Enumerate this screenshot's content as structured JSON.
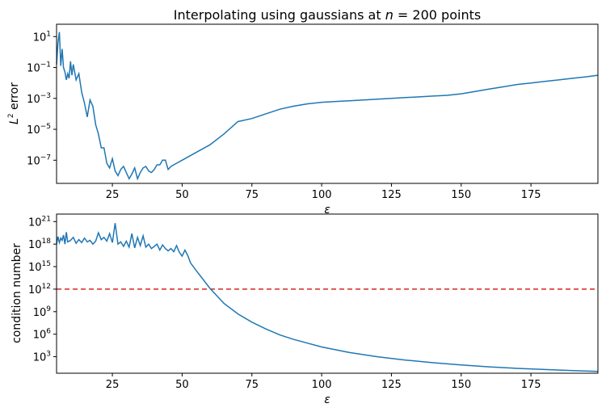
{
  "chart_data": [
    {
      "type": "line",
      "title_text": "Interpolating using gaussians at ",
      "title_var": "n",
      "title_eq": " = 200 points",
      "xlabel": "ε",
      "ylabel_base": "L",
      "ylabel_sup": "2",
      "ylabel_rest": " error",
      "y_scale": "log",
      "xlim": [
        5,
        199
      ],
      "ylim_exp": [
        -8.5,
        1.8
      ],
      "x_ticks": [
        25,
        50,
        75,
        100,
        125,
        150,
        175
      ],
      "y_tick_exps": [
        1,
        -1,
        -3,
        -5,
        -7
      ],
      "y_tick_labels": [
        {
          "base": "10",
          "exp": "1"
        },
        {
          "base": "10",
          "exp": "−1"
        },
        {
          "base": "10",
          "exp": "−3"
        },
        {
          "base": "10",
          "exp": "−5"
        },
        {
          "base": "10",
          "exp": "−7"
        }
      ],
      "series": [
        {
          "color": "#1f77b4",
          "x": [
            5,
            5.5,
            6,
            6.5,
            7,
            7.5,
            8,
            8.5,
            9,
            9.5,
            10,
            10.5,
            11,
            12,
            13,
            14,
            15,
            16,
            17,
            18,
            19,
            20,
            21,
            22,
            23,
            24,
            25,
            26,
            27,
            28,
            29,
            30,
            31,
            32,
            33,
            34,
            35,
            36,
            37,
            38,
            39,
            40,
            41,
            42,
            43,
            44,
            45,
            46,
            48,
            50,
            55,
            60,
            65,
            70,
            75,
            80,
            85,
            90,
            95,
            100,
            105,
            110,
            115,
            120,
            125,
            130,
            135,
            140,
            145,
            150,
            155,
            160,
            165,
            170,
            175,
            180,
            185,
            190,
            195,
            199
          ],
          "y_exp": [
            -0.8,
            0.6,
            1.3,
            -0.9,
            0.2,
            -1.0,
            -1.3,
            -1.8,
            -1.4,
            -1.7,
            -0.6,
            -1.5,
            -0.8,
            -1.8,
            -1.4,
            -2.6,
            -3.3,
            -4.2,
            -3.1,
            -3.5,
            -4.7,
            -5.3,
            -6.2,
            -6.2,
            -7.2,
            -7.5,
            -6.9,
            -7.7,
            -8.0,
            -7.6,
            -7.4,
            -7.8,
            -8.2,
            -7.9,
            -7.5,
            -8.2,
            -7.8,
            -7.5,
            -7.4,
            -7.7,
            -7.8,
            -7.6,
            -7.3,
            -7.3,
            -7.0,
            -7.0,
            -7.6,
            -7.4,
            -7.2,
            -7.0,
            -6.5,
            -6.0,
            -5.3,
            -4.5,
            -4.3,
            -4.0,
            -3.7,
            -3.5,
            -3.35,
            -3.25,
            -3.2,
            -3.15,
            -3.1,
            -3.05,
            -3.0,
            -2.95,
            -2.9,
            -2.85,
            -2.8,
            -2.7,
            -2.55,
            -2.4,
            -2.25,
            -2.1,
            -2.0,
            -1.9,
            -1.8,
            -1.7,
            -1.6,
            -1.5
          ]
        }
      ]
    },
    {
      "type": "line",
      "xlabel": "ε",
      "ylabel": "condition number",
      "y_scale": "log",
      "xlim": [
        5,
        199
      ],
      "ylim_exp": [
        0.8,
        22
      ],
      "x_ticks": [
        25,
        50,
        75,
        100,
        125,
        150,
        175
      ],
      "y_tick_exps": [
        21,
        18,
        15,
        12,
        9,
        6,
        3
      ],
      "y_tick_labels": [
        {
          "base": "10",
          "exp": "21"
        },
        {
          "base": "10",
          "exp": "18"
        },
        {
          "base": "10",
          "exp": "15"
        },
        {
          "base": "10",
          "exp": "12"
        },
        {
          "base": "10",
          "exp": "9"
        },
        {
          "base": "10",
          "exp": "6"
        },
        {
          "base": "10",
          "exp": "3"
        }
      ],
      "threshold": {
        "y_exp": 12,
        "color": "#d62728",
        "style": "dashed"
      },
      "series": [
        {
          "color": "#1f77b4",
          "x": [
            5,
            5.5,
            6,
            6.5,
            7,
            7.5,
            8,
            8.5,
            9,
            10,
            11,
            12,
            13,
            14,
            15,
            16,
            17,
            18,
            19,
            20,
            21,
            22,
            23,
            24,
            25,
            26,
            27,
            28,
            29,
            30,
            31,
            32,
            33,
            34,
            35,
            36,
            37,
            38,
            39,
            40,
            41,
            42,
            43,
            44,
            45,
            46,
            47,
            48,
            49,
            50,
            51,
            52,
            53,
            55,
            60,
            65,
            70,
            75,
            80,
            85,
            90,
            95,
            100,
            110,
            120,
            130,
            140,
            150,
            160,
            170,
            180,
            190,
            199
          ],
          "y_exp": [
            18,
            19,
            18.2,
            18.8,
            18.5,
            19.2,
            18,
            19.6,
            18.3,
            18.5,
            18.9,
            18.1,
            18.6,
            18.2,
            18.8,
            18.3,
            18.5,
            18,
            18.4,
            19.5,
            18.6,
            18.9,
            18.4,
            19.4,
            18.2,
            20.8,
            18.0,
            18.3,
            17.7,
            18.4,
            17.6,
            19.4,
            17.5,
            18.9,
            17.8,
            19.1,
            17.6,
            18.0,
            17.4,
            17.7,
            18.0,
            17.2,
            17.9,
            17.4,
            17.1,
            17.4,
            17.0,
            17.8,
            16.9,
            16.4,
            17.2,
            16.5,
            15.5,
            14.5,
            12.1,
            10.1,
            8.7,
            7.6,
            6.7,
            5.9,
            5.3,
            4.8,
            4.3,
            3.55,
            3.0,
            2.55,
            2.2,
            1.9,
            1.65,
            1.45,
            1.3,
            1.15,
            1.05
          ]
        }
      ]
    }
  ]
}
